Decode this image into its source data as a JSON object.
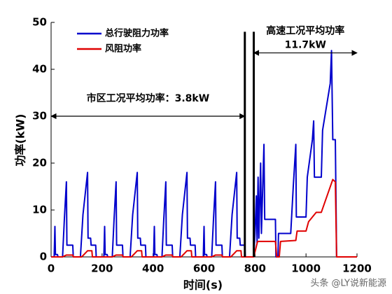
{
  "chart_data": {
    "type": "line",
    "xlabel": "时间(s)",
    "ylabel": "功率(kW)",
    "xlim": [
      0,
      1200
    ],
    "xticks": [
      0,
      200,
      400,
      600,
      800,
      1000,
      1200
    ],
    "ylim": [
      0,
      50
    ],
    "yticks": [
      0,
      10,
      20,
      30,
      40,
      50
    ],
    "legend": "upper left",
    "series": [
      {
        "name": "总行驶阻力功率",
        "color": "#0000cc",
        "x": [
          0,
          12,
          15,
          17,
          25,
          27,
          45,
          52,
          60,
          62,
          85,
          87,
          115,
          125,
          135,
          143,
          145,
          155,
          157,
          175,
          177,
          195,
          207,
          210,
          212,
          220,
          222,
          240,
          247,
          255,
          257,
          280,
          282,
          310,
          320,
          330,
          338,
          340,
          350,
          352,
          370,
          372,
          390,
          402,
          405,
          407,
          415,
          417,
          435,
          442,
          450,
          452,
          475,
          477,
          505,
          515,
          525,
          533,
          535,
          545,
          547,
          565,
          567,
          585,
          597,
          600,
          602,
          610,
          612,
          630,
          637,
          645,
          647,
          670,
          672,
          700,
          710,
          720,
          728,
          730,
          740,
          742,
          760,
          762,
          780,
          795,
          800,
          805,
          808,
          812,
          815,
          822,
          825,
          835,
          838,
          880,
          882,
          890,
          892,
          940,
          950,
          960,
          962,
          1000,
          1005,
          1025,
          1030,
          1033,
          1060,
          1065,
          1095,
          1100,
          1105,
          1115,
          1120,
          1200
        ],
        "values": [
          0,
          0,
          6.5,
          0.5,
          0.5,
          0,
          0,
          8,
          16,
          2.5,
          2.5,
          0,
          0,
          9,
          14,
          18,
          4,
          4,
          2.5,
          2.5,
          0,
          0,
          0,
          6.5,
          0.5,
          0.5,
          0,
          0,
          8,
          16,
          2.5,
          2.5,
          0,
          0,
          9,
          14,
          18,
          4,
          4,
          2.5,
          2.5,
          0,
          0,
          0,
          6.5,
          0.5,
          0.5,
          0,
          0,
          8,
          16,
          2.5,
          2.5,
          0,
          0,
          9,
          14,
          18,
          4,
          4,
          2.5,
          2.5,
          0,
          0,
          0,
          6.5,
          0.5,
          0.5,
          0,
          0,
          8,
          16,
          2.5,
          2.5,
          0,
          0,
          9,
          14,
          18,
          4,
          4,
          2.5,
          2.5,
          0,
          0,
          0,
          5,
          13,
          3,
          17,
          4,
          20,
          5,
          24,
          8,
          8,
          0,
          0,
          5,
          5,
          15,
          24,
          8.5,
          8.5,
          17,
          25,
          29,
          17,
          17,
          27,
          37,
          44,
          25,
          25,
          0,
          0
        ]
      },
      {
        "name": "风阻功率",
        "color": "#e00000",
        "x": [
          0,
          45,
          60,
          85,
          87,
          120,
          143,
          160,
          162,
          195,
          240,
          255,
          280,
          282,
          315,
          338,
          355,
          357,
          390,
          435,
          450,
          475,
          477,
          510,
          533,
          550,
          552,
          585,
          630,
          645,
          670,
          672,
          705,
          728,
          745,
          747,
          780,
          795,
          810,
          880,
          885,
          895,
          900,
          960,
          965,
          1000,
          1010,
          1040,
          1060,
          1105,
          1115,
          1120,
          1200
        ],
        "values": [
          0,
          0,
          0.4,
          0.4,
          0,
          0,
          1.3,
          1.3,
          0,
          0,
          0,
          0.4,
          0.4,
          0,
          0,
          1.3,
          1.3,
          0,
          0,
          0,
          0.4,
          0.4,
          0,
          0,
          1.3,
          1.3,
          0,
          0,
          0,
          0.4,
          0.4,
          0,
          0,
          1.3,
          1.3,
          0,
          0,
          0,
          3.3,
          3.3,
          0,
          0,
          3.3,
          3.5,
          5.5,
          5.5,
          7.5,
          9.5,
          9.5,
          16.5,
          16,
          0,
          0
        ]
      }
    ],
    "vlines": [
      760,
      795
    ],
    "vline_top": 48,
    "annotations": [
      {
        "text": "市区工况平均功率：3.8kW",
        "x": [
          0,
          760
        ],
        "y": 30
      },
      {
        "text": "高速工况平均功率",
        "x": [
          795,
          1200
        ],
        "y": 43.5,
        "sub": "11.7kW"
      }
    ],
    "watermark": "头条 @LY说新能源"
  }
}
